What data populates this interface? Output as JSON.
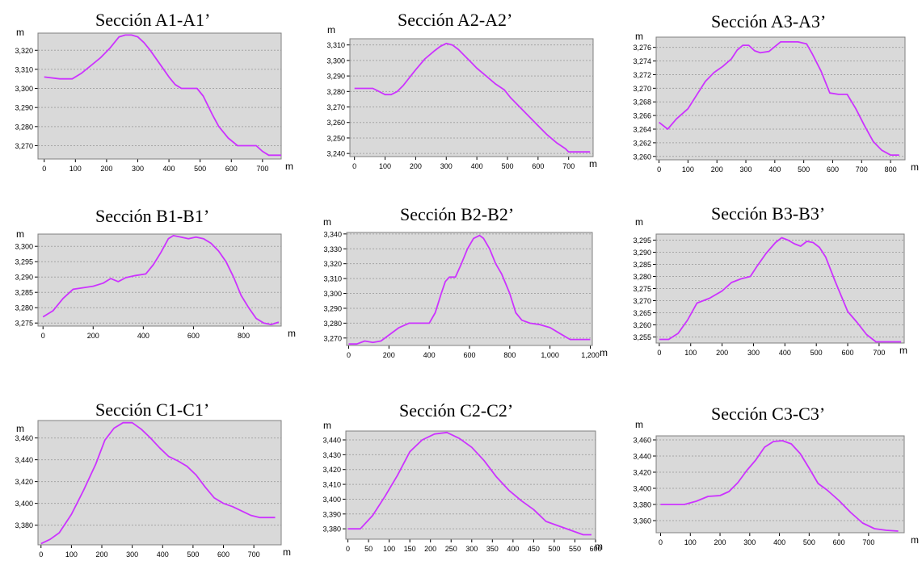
{
  "colors": {
    "line": "#cc33ff",
    "plot_bg": "#d9d9d9",
    "grid": "#a6a6a6",
    "frame": "#000000"
  },
  "chart_data": [
    {
      "type": "line",
      "title": "Sección A1-A1’",
      "ylabel": "m",
      "xlabel": "m",
      "xlim": [
        -20,
        760
      ],
      "ylim": [
        3263,
        3329
      ],
      "xticks": [
        0,
        100,
        200,
        300,
        400,
        500,
        600,
        700
      ],
      "xtick_labels": [
        "0",
        "100",
        "200",
        "300",
        "400",
        "500",
        "600",
        "700"
      ],
      "yticks": [
        3270,
        3280,
        3290,
        3300,
        3310,
        3320
      ],
      "ytick_labels": [
        "3,270",
        "3,280",
        "3,290",
        "3,300",
        "3,310",
        "3,320"
      ],
      "grid": true,
      "x_unit_position": "outside-right",
      "series": [
        {
          "x": [
            0,
            50,
            90,
            120,
            150,
            180,
            210,
            240,
            260,
            280,
            300,
            320,
            340,
            370,
            400,
            420,
            440,
            470,
            490,
            510,
            540,
            560,
            590,
            620,
            650,
            680,
            700,
            720,
            740,
            760
          ],
          "y": [
            3306,
            3305,
            3305,
            3308,
            3312,
            3316,
            3321,
            3327,
            3328,
            3328,
            3327,
            3324,
            3320,
            3313,
            3306,
            3302,
            3300,
            3300,
            3300,
            3296,
            3286,
            3280,
            3274,
            3270,
            3270,
            3270,
            3267,
            3265,
            3265,
            3265
          ]
        }
      ]
    },
    {
      "type": "line",
      "title": "Sección A2-A2’",
      "ylabel": "m",
      "xlabel": "m",
      "xlim": [
        -15,
        780
      ],
      "ylim": [
        3238,
        3314
      ],
      "xticks": [
        0,
        100,
        200,
        300,
        400,
        500,
        600,
        700
      ],
      "xtick_labels": [
        "0",
        "100",
        "200",
        "300",
        "400",
        "500",
        "600",
        "700"
      ],
      "yticks": [
        3240,
        3250,
        3260,
        3270,
        3280,
        3290,
        3300,
        3310
      ],
      "ytick_labels": [
        "3,240",
        "3,250",
        "3,260",
        "3,270",
        "3,280",
        "3,290",
        "3,300",
        "3,310"
      ],
      "grid": true,
      "x_unit_position": "inside-right",
      "series": [
        {
          "x": [
            0,
            30,
            60,
            80,
            100,
            120,
            140,
            160,
            180,
            200,
            230,
            260,
            280,
            300,
            320,
            340,
            360,
            380,
            400,
            430,
            460,
            490,
            510,
            540,
            570,
            600,
            630,
            660,
            690,
            700,
            720,
            740,
            770
          ],
          "y": [
            3282,
            3282,
            3282,
            3280,
            3278,
            3278,
            3280,
            3284,
            3289,
            3294,
            3301,
            3306,
            3309,
            3311,
            3310,
            3307,
            3303,
            3299,
            3295,
            3290,
            3285,
            3281,
            3276,
            3270,
            3264,
            3258,
            3252,
            3247,
            3243,
            3241,
            3241,
            3241,
            3241
          ]
        }
      ]
    },
    {
      "type": "line",
      "title": "Sección A3-A3’",
      "ylabel": "m",
      "xlabel": "m",
      "xlim": [
        -10,
        850
      ],
      "ylim": [
        3259.5,
        3277.5
      ],
      "xticks": [
        0,
        100,
        200,
        300,
        400,
        500,
        600,
        700,
        800
      ],
      "xtick_labels": [
        "0",
        "100",
        "200",
        "300",
        "400",
        "500",
        "600",
        "700",
        "800"
      ],
      "yticks": [
        3260,
        3262,
        3264,
        3266,
        3268,
        3270,
        3272,
        3274,
        3276
      ],
      "ytick_labels": [
        "3,260",
        "3,262",
        "3,264",
        "3,266",
        "3,268",
        "3,270",
        "3,272",
        "3,274",
        "3,276"
      ],
      "grid": true,
      "x_unit_position": "outside-right",
      "series": [
        {
          "x": [
            0,
            30,
            60,
            100,
            130,
            160,
            190,
            220,
            250,
            270,
            290,
            310,
            330,
            350,
            380,
            400,
            420,
            450,
            480,
            510,
            530,
            560,
            590,
            620,
            650,
            680,
            710,
            740,
            770,
            800,
            830
          ],
          "y": [
            3265,
            3264,
            3265.5,
            3267,
            3269,
            3271,
            3272.3,
            3273.2,
            3274.3,
            3275.6,
            3276.3,
            3276.3,
            3275.5,
            3275.2,
            3275.4,
            3276.1,
            3276.8,
            3276.8,
            3276.8,
            3276.5,
            3275,
            3272.5,
            3269.3,
            3269.1,
            3269.1,
            3267,
            3264.5,
            3262.2,
            3260.9,
            3260.2,
            3260.2
          ]
        }
      ]
    },
    {
      "type": "line",
      "title": "Sección B1-B1’",
      "ylabel": "m",
      "xlabel": "m",
      "xlim": [
        -20,
        950
      ],
      "ylim": [
        3274,
        3304
      ],
      "xticks": [
        0,
        200,
        400,
        600,
        800
      ],
      "xtick_labels": [
        "0",
        "200",
        "400",
        "600",
        "800"
      ],
      "yticks": [
        3275,
        3280,
        3285,
        3290,
        3295,
        3300
      ],
      "ytick_labels": [
        "3,275",
        "3,280",
        "3,285",
        "3,290",
        "3,295",
        "3,300"
      ],
      "grid": true,
      "x_unit_position": "outside-right",
      "series": [
        {
          "x": [
            0,
            40,
            80,
            120,
            160,
            200,
            240,
            270,
            300,
            330,
            370,
            410,
            440,
            470,
            500,
            520,
            550,
            580,
            610,
            640,
            670,
            700,
            730,
            760,
            790,
            820,
            850,
            880,
            910,
            940
          ],
          "y": [
            3277,
            3279,
            3283,
            3286,
            3286.5,
            3287,
            3288,
            3289.5,
            3288.5,
            3289.8,
            3290.5,
            3291,
            3294,
            3298,
            3302.5,
            3303.5,
            3303,
            3302.5,
            3303,
            3302.5,
            3301,
            3298.5,
            3295,
            3290,
            3284,
            3280,
            3276.5,
            3275,
            3274.5,
            3275.3
          ]
        }
      ]
    },
    {
      "type": "line",
      "title": "Sección B2-B2’",
      "ylabel": "m",
      "xlabel": "m",
      "xlim": [
        -10,
        1210
      ],
      "ylim": [
        3265,
        3341
      ],
      "xticks": [
        0,
        200,
        400,
        600,
        800,
        1000,
        1200
      ],
      "xtick_labels": [
        "0",
        "200",
        "400",
        "600",
        "800",
        "1,000",
        "1,200"
      ],
      "yticks": [
        3270,
        3280,
        3290,
        3300,
        3310,
        3320,
        3330,
        3340
      ],
      "ytick_labels": [
        "3,270",
        "3,280",
        "3,290",
        "3,300",
        "3,310",
        "3,320",
        "3,330",
        "3,340"
      ],
      "grid": true,
      "x_unit_position": "outside-right",
      "series": [
        {
          "x": [
            0,
            40,
            80,
            120,
            160,
            200,
            250,
            300,
            350,
            400,
            430,
            460,
            480,
            500,
            530,
            560,
            590,
            620,
            650,
            670,
            700,
            730,
            760,
            800,
            830,
            860,
            900,
            950,
            1000,
            1050,
            1100,
            1150,
            1200
          ],
          "y": [
            3266,
            3266,
            3268,
            3267,
            3268,
            3272,
            3277,
            3280,
            3280,
            3280,
            3287,
            3300,
            3308,
            3311,
            3311,
            3320,
            3330,
            3337,
            3339,
            3337,
            3330,
            3320,
            3313,
            3300,
            3287,
            3282,
            3280,
            3279,
            3277,
            3273,
            3269,
            3269,
            3269
          ]
        }
      ]
    },
    {
      "type": "line",
      "title": "Sección B3-B3’",
      "ylabel": "m",
      "xlabel": "m",
      "xlim": [
        -10,
        780
      ],
      "ylim": [
        3252.5,
        3297.5
      ],
      "xticks": [
        0,
        100,
        200,
        300,
        400,
        500,
        600,
        700
      ],
      "xtick_labels": [
        "0",
        "100",
        "200",
        "300",
        "400",
        "500",
        "600",
        "700"
      ],
      "yticks": [
        3255,
        3260,
        3265,
        3270,
        3275,
        3280,
        3285,
        3290,
        3295
      ],
      "ytick_labels": [
        "3,255",
        "3,260",
        "3,265",
        "3,270",
        "3,275",
        "3,280",
        "3,285",
        "3,290",
        "3,295"
      ],
      "grid": true,
      "x_unit_position": "outside-right",
      "series": [
        {
          "x": [
            0,
            30,
            60,
            90,
            120,
            160,
            200,
            230,
            260,
            290,
            310,
            340,
            370,
            390,
            410,
            430,
            450,
            470,
            490,
            510,
            530,
            560,
            600,
            630,
            660,
            690,
            720,
            770
          ],
          "y": [
            3254,
            3254,
            3256.5,
            3262,
            3269,
            3271,
            3274,
            3277.5,
            3279,
            3280,
            3284,
            3289.5,
            3294,
            3296,
            3295,
            3293.5,
            3292.5,
            3294.5,
            3294,
            3292,
            3288,
            3278,
            3265.5,
            3261,
            3256,
            3253,
            3253,
            3253
          ]
        }
      ]
    },
    {
      "type": "line",
      "title": "Sección C1-C1’",
      "ylabel": "m",
      "xlabel": "m",
      "xlim": [
        -10,
        790
      ],
      "ylim": [
        3362,
        3476
      ],
      "xticks": [
        0,
        100,
        200,
        300,
        400,
        500,
        600,
        700
      ],
      "xtick_labels": [
        "0",
        "100",
        "200",
        "300",
        "400",
        "500",
        "600",
        "700"
      ],
      "yticks": [
        3380,
        3400,
        3420,
        3440,
        3460
      ],
      "ytick_labels": [
        "3,380",
        "3,400",
        "3,420",
        "3,440",
        "3,460"
      ],
      "grid": true,
      "x_unit_position": "inside-right",
      "series": [
        {
          "x": [
            0,
            30,
            60,
            100,
            140,
            180,
            210,
            240,
            270,
            300,
            330,
            360,
            390,
            420,
            450,
            480,
            510,
            540,
            570,
            600,
            630,
            660,
            690,
            720,
            770
          ],
          "y": [
            3363,
            3367,
            3373,
            3390,
            3412,
            3436,
            3458,
            3469,
            3474,
            3474,
            3468,
            3460,
            3451,
            3443,
            3439,
            3434,
            3426,
            3415,
            3405,
            3400,
            3397,
            3393,
            3389,
            3387,
            3387
          ]
        }
      ]
    },
    {
      "type": "line",
      "title": "Sección C2-C2’",
      "ylabel": "m",
      "xlabel": "m",
      "xlim": [
        -5,
        600
      ],
      "ylim": [
        3373,
        3446
      ],
      "xticks": [
        0,
        50,
        100,
        150,
        200,
        250,
        300,
        350,
        400,
        450,
        500,
        550,
        600
      ],
      "xtick_labels": [
        "0",
        "50",
        "100",
        "150",
        "200",
        "250",
        "300",
        "350",
        "400",
        "450",
        "500",
        "550",
        "600"
      ],
      "yticks": [
        3380,
        3390,
        3400,
        3410,
        3420,
        3430,
        3440
      ],
      "ytick_labels": [
        "3,380",
        "3,390",
        "3,400",
        "3,410",
        "3,420",
        "3,430",
        "3,440"
      ],
      "grid": true,
      "x_unit_position": "outside-right",
      "series": [
        {
          "x": [
            0,
            30,
            60,
            90,
            120,
            150,
            180,
            210,
            240,
            270,
            300,
            330,
            360,
            390,
            420,
            450,
            480,
            510,
            540,
            570,
            590
          ],
          "y": [
            3380,
            3380,
            3389,
            3402,
            3416,
            3432,
            3440,
            3444,
            3445,
            3441,
            3435,
            3426,
            3415,
            3406,
            3399,
            3393,
            3385,
            3382,
            3379,
            3376,
            3376
          ]
        }
      ]
    },
    {
      "type": "line",
      "title": "Sección C3-C3’",
      "ylabel": "m",
      "xlabel": "m",
      "xlim": [
        -15,
        820
      ],
      "ylim": [
        3345,
        3465
      ],
      "xticks": [
        0,
        100,
        200,
        300,
        400,
        500,
        600,
        700
      ],
      "xtick_labels": [
        "0",
        "100",
        "200",
        "300",
        "400",
        "500",
        "600",
        "700"
      ],
      "yticks": [
        3360,
        3380,
        3400,
        3420,
        3440,
        3460
      ],
      "ytick_labels": [
        "3,360",
        "3,380",
        "3,400",
        "3,420",
        "3,440",
        "3,460"
      ],
      "grid": true,
      "x_unit_position": "outside-right",
      "series": [
        {
          "x": [
            0,
            40,
            80,
            120,
            160,
            200,
            230,
            260,
            290,
            320,
            350,
            380,
            410,
            440,
            470,
            500,
            530,
            560,
            600,
            640,
            680,
            720,
            760,
            800
          ],
          "y": [
            3380,
            3380,
            3380,
            3384,
            3390,
            3391,
            3396,
            3407,
            3422,
            3435,
            3451,
            3458,
            3459,
            3455,
            3443,
            3425,
            3406,
            3398,
            3385,
            3370,
            3357,
            3350,
            3348,
            3347
          ]
        }
      ]
    }
  ]
}
